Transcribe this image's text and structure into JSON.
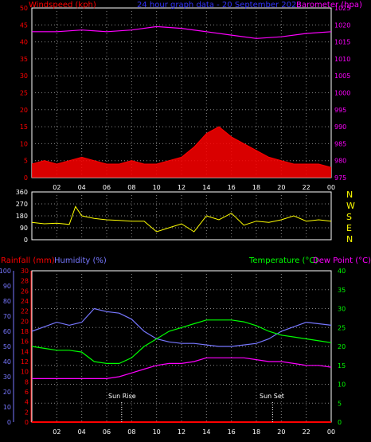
{
  "chart_data": [
    {
      "type": "line",
      "title": "24 hour graph data - 20 September 2023",
      "ylabel_left": "Windspeed (kph)",
      "ylabel_right": "Barometer (hpa)",
      "x_ticks": [
        "02",
        "04",
        "06",
        "08",
        "10",
        "12",
        "14",
        "16",
        "18",
        "20",
        "22",
        "00"
      ],
      "y_left_ticks": [
        "0",
        "5",
        "10",
        "15",
        "20",
        "25",
        "30",
        "35",
        "40",
        "45",
        "50"
      ],
      "y_right_ticks": [
        "975",
        "980",
        "985",
        "990",
        "995",
        "1000",
        "1005",
        "1010",
        "1015",
        "1020",
        "1025"
      ],
      "ylim_left": [
        0,
        50
      ],
      "ylim_right": [
        975,
        1025
      ],
      "grid": true,
      "series": [
        {
          "name": "Windspeed (kph)",
          "color": "#ff0000",
          "hours": [
            0,
            1,
            2,
            3,
            4,
            5,
            6,
            7,
            8,
            9,
            10,
            11,
            12,
            13,
            14,
            15,
            16,
            17,
            18,
            19,
            20,
            21,
            22,
            23,
            24
          ],
          "values": [
            4,
            5,
            4,
            5,
            6,
            5,
            4,
            4,
            5,
            4,
            4,
            5,
            6,
            9,
            13,
            15,
            12,
            10,
            8,
            6,
            5,
            4,
            4,
            4,
            3
          ]
        },
        {
          "name": "Barometer (hpa)",
          "color": "#ff00ff",
          "hours": [
            0,
            2,
            4,
            6,
            8,
            10,
            12,
            14,
            16,
            18,
            20,
            22,
            24
          ],
          "values": [
            1018,
            1018,
            1018.5,
            1018,
            1018.5,
            1019.5,
            1019,
            1018,
            1017,
            1016,
            1016.5,
            1017.5,
            1018
          ]
        }
      ]
    },
    {
      "type": "line",
      "ylabels": [
        "N",
        "W",
        "S",
        "E",
        "N"
      ],
      "y_ticks": [
        "0",
        "90",
        "180",
        "270",
        "360"
      ],
      "ylim": [
        0,
        360
      ],
      "grid": true,
      "series": [
        {
          "name": "Wind direction",
          "color": "#ffff00",
          "hours": [
            0,
            1,
            2,
            3,
            3.5,
            4,
            5,
            6,
            7,
            8,
            9,
            10,
            11,
            12,
            13,
            14,
            15,
            16,
            17,
            18,
            19,
            20,
            21,
            22,
            23,
            24
          ],
          "values": [
            130,
            120,
            125,
            115,
            250,
            180,
            160,
            150,
            145,
            140,
            140,
            60,
            90,
            120,
            60,
            180,
            150,
            200,
            110,
            140,
            130,
            150,
            180,
            140,
            150,
            140
          ]
        }
      ]
    },
    {
      "type": "line",
      "ylabel_left_outer": "Rainfall (mm)",
      "ylabel_left_inner": "Humidity (%)",
      "ylabel_right_inner": "Temperature (°C)",
      "ylabel_right_outer": "Dew Point (°C)",
      "humidity_ticks": [
        "0",
        "10",
        "20",
        "30",
        "40",
        "50",
        "60",
        "70",
        "80",
        "90",
        "100"
      ],
      "rain_ticks": [
        "0",
        "2",
        "4",
        "6",
        "8",
        "10",
        "12",
        "14",
        "16",
        "18",
        "20",
        "22",
        "24",
        "26",
        "28",
        "30"
      ],
      "temp_ticks": [
        "0",
        "5",
        "10",
        "15",
        "20",
        "25",
        "30",
        "35",
        "40"
      ],
      "humidity_range": [
        0,
        100
      ],
      "rain_range": [
        0,
        30
      ],
      "temp_range": [
        0,
        40
      ],
      "annotations": [
        {
          "label": "Sun Rise",
          "hour": 7.2
        },
        {
          "label": "Sun Set",
          "hour": 19.3
        }
      ],
      "grid": true,
      "series": [
        {
          "name": "Humidity (%)",
          "color": "#7777ff",
          "axis": "humidity",
          "hours": [
            0,
            1,
            2,
            3,
            4,
            5,
            6,
            7,
            8,
            9,
            10,
            11,
            12,
            13,
            14,
            15,
            16,
            17,
            18,
            19,
            20,
            21,
            22,
            23,
            24
          ],
          "values": [
            60,
            63,
            66,
            64,
            66,
            75,
            73,
            72,
            68,
            60,
            55,
            53,
            52,
            52,
            51,
            50,
            50,
            51,
            52,
            55,
            60,
            63,
            66,
            65,
            64
          ]
        },
        {
          "name": "Temperature (°C)",
          "color": "#00ff00",
          "axis": "temp",
          "hours": [
            0,
            1,
            2,
            3,
            4,
            5,
            6,
            7,
            8,
            9,
            10,
            11,
            12,
            13,
            14,
            15,
            16,
            17,
            18,
            19,
            20,
            21,
            22,
            23,
            24
          ],
          "values": [
            20,
            19.5,
            19,
            19,
            18.5,
            16,
            15.5,
            15.5,
            17,
            20,
            22,
            24,
            25,
            26,
            27,
            27,
            27,
            26.5,
            25.5,
            24,
            23,
            22.5,
            22,
            21.5,
            21
          ]
        },
        {
          "name": "Dew Point (°C)",
          "color": "#ff00ff",
          "axis": "temp",
          "hours": [
            0,
            1,
            2,
            3,
            4,
            5,
            6,
            7,
            8,
            9,
            10,
            11,
            12,
            13,
            14,
            15,
            16,
            17,
            18,
            19,
            20,
            21,
            22,
            23,
            24
          ],
          "values": [
            11.5,
            11.5,
            11.5,
            11.5,
            11.5,
            11.5,
            11.5,
            12,
            13,
            14,
            15,
            15.5,
            15.5,
            16,
            17,
            17,
            17,
            17,
            16.5,
            16,
            16,
            15.5,
            15,
            15,
            14.5
          ]
        },
        {
          "name": "Rainfall (mm)",
          "color": "#ff0000",
          "axis": "rain",
          "hours": [
            0,
            24
          ],
          "values": [
            0,
            0
          ]
        }
      ]
    }
  ]
}
